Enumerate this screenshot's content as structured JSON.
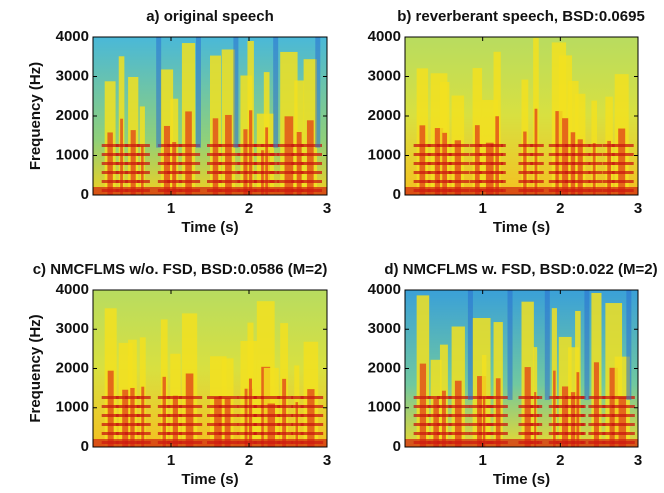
{
  "chart_data": [
    {
      "type": "spectrogram",
      "title": "a) original speech",
      "xlabel": "Time (s)",
      "ylabel": "Frequency (Hz)",
      "xlim": [
        0,
        3
      ],
      "xticks": [
        1,
        2,
        3
      ],
      "ylim": [
        0,
        4000
      ],
      "yticks": [
        0,
        1000,
        2000,
        3000,
        4000
      ]
    },
    {
      "type": "spectrogram",
      "title": "b) reverberant speech, BSD:0.0695",
      "xlabel": "Time (s)",
      "xlim": [
        0,
        3
      ],
      "xticks": [
        1,
        2,
        3
      ],
      "ylim": [
        0,
        4000
      ],
      "yticks": [
        0,
        1000,
        2000,
        3000,
        4000
      ]
    },
    {
      "type": "spectrogram",
      "title": "c) NMCFLMS w/o. FSD, BSD:0.0586 (M=2)",
      "xlabel": "Time (s)",
      "ylabel": "Frequency (Hz)",
      "xlim": [
        0,
        3
      ],
      "xticks": [
        1,
        2,
        3
      ],
      "ylim": [
        0,
        4000
      ],
      "yticks": [
        0,
        1000,
        2000,
        3000,
        4000
      ]
    },
    {
      "type": "spectrogram",
      "title": "d) NMCFLMS w. FSD, BSD:0.022 (M=2)",
      "xlabel": "Time (s)",
      "xlim": [
        0,
        3
      ],
      "xticks": [
        1,
        2,
        3
      ],
      "ylim": [
        0,
        4000
      ],
      "yticks": [
        0,
        1000,
        2000,
        3000,
        4000
      ]
    }
  ]
}
